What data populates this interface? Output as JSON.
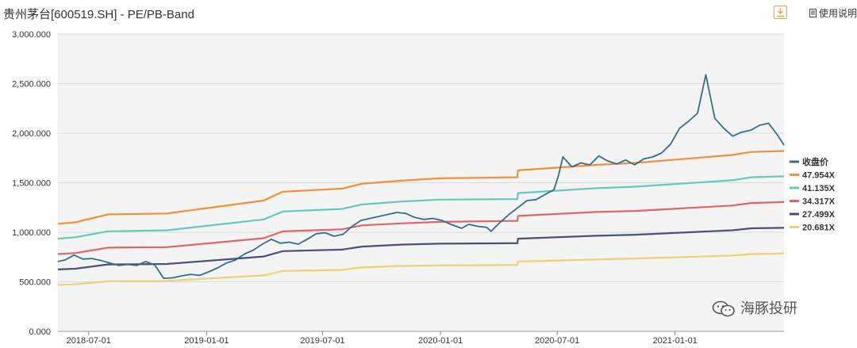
{
  "header": {
    "title": "贵州茅台[600519.SH] - PE/PB-Band",
    "help_label": "使用说明"
  },
  "watermark": {
    "text": "海豚投研"
  },
  "colors": {
    "close": "#2f6f91",
    "b1": "#f0913a",
    "b2": "#64c8c0",
    "b3": "#e06666",
    "b4": "#4b4f80",
    "b5": "#f1cf76",
    "grid": "#dadada",
    "plot_bg": "#f4f4f4"
  },
  "chart_data": {
    "type": "line",
    "x_ticks": [
      "2018-07-01",
      "2019-01-01",
      "2019-07-01",
      "2020-01-01",
      "2020-07-01",
      "2021-01-01"
    ],
    "y_ticks": [
      "0.000",
      "500.000",
      "1,000.000",
      "1,500.000",
      "2,000.000",
      "2,500.000",
      "3,000.000"
    ],
    "ylim": [
      0,
      3000
    ],
    "xlim": [
      "2018-05-14",
      "2021-06-20"
    ],
    "legend_position": "right",
    "series": [
      {
        "name": "收盘价",
        "key": "close",
        "points": [
          [
            "2018-05-14",
            705
          ],
          [
            "2018-05-25",
            720
          ],
          [
            "2018-06-08",
            770
          ],
          [
            "2018-06-22",
            730
          ],
          [
            "2018-07-06",
            735
          ],
          [
            "2018-07-20",
            715
          ],
          [
            "2018-08-03",
            690
          ],
          [
            "2018-08-17",
            665
          ],
          [
            "2018-08-31",
            675
          ],
          [
            "2018-09-14",
            665
          ],
          [
            "2018-09-28",
            705
          ],
          [
            "2018-10-12",
            670
          ],
          [
            "2018-10-26",
            535
          ],
          [
            "2018-11-09",
            540
          ],
          [
            "2018-11-23",
            560
          ],
          [
            "2018-12-07",
            575
          ],
          [
            "2018-12-21",
            565
          ],
          [
            "2019-01-04",
            600
          ],
          [
            "2019-01-18",
            640
          ],
          [
            "2019-02-01",
            690
          ],
          [
            "2019-02-15",
            720
          ],
          [
            "2019-03-01",
            780
          ],
          [
            "2019-03-15",
            820
          ],
          [
            "2019-03-29",
            880
          ],
          [
            "2019-04-12",
            930
          ],
          [
            "2019-04-26",
            890
          ],
          [
            "2019-05-10",
            900
          ],
          [
            "2019-05-24",
            880
          ],
          [
            "2019-06-07",
            930
          ],
          [
            "2019-06-21",
            985
          ],
          [
            "2019-07-05",
            995
          ],
          [
            "2019-07-19",
            960
          ],
          [
            "2019-08-02",
            980
          ],
          [
            "2019-08-16",
            1060
          ],
          [
            "2019-08-30",
            1120
          ],
          [
            "2019-09-13",
            1140
          ],
          [
            "2019-09-27",
            1160
          ],
          [
            "2019-10-11",
            1180
          ],
          [
            "2019-10-25",
            1200
          ],
          [
            "2019-11-08",
            1190
          ],
          [
            "2019-11-22",
            1150
          ],
          [
            "2019-12-06",
            1130
          ],
          [
            "2019-12-20",
            1140
          ],
          [
            "2020-01-03",
            1120
          ],
          [
            "2020-01-17",
            1080
          ],
          [
            "2020-02-03",
            1040
          ],
          [
            "2020-02-14",
            1080
          ],
          [
            "2020-02-28",
            1060
          ],
          [
            "2020-03-13",
            1050
          ],
          [
            "2020-03-20",
            1010
          ],
          [
            "2020-04-03",
            1100
          ],
          [
            "2020-04-17",
            1180
          ],
          [
            "2020-05-01",
            1250
          ],
          [
            "2020-05-15",
            1320
          ],
          [
            "2020-05-29",
            1330
          ],
          [
            "2020-06-12",
            1380
          ],
          [
            "2020-06-26",
            1430
          ],
          [
            "2020-07-03",
            1570
          ],
          [
            "2020-07-10",
            1760
          ],
          [
            "2020-07-24",
            1660
          ],
          [
            "2020-08-07",
            1700
          ],
          [
            "2020-08-21",
            1680
          ],
          [
            "2020-09-04",
            1770
          ],
          [
            "2020-09-18",
            1720
          ],
          [
            "2020-10-02",
            1690
          ],
          [
            "2020-10-16",
            1730
          ],
          [
            "2020-10-30",
            1680
          ],
          [
            "2020-11-13",
            1740
          ],
          [
            "2020-11-27",
            1760
          ],
          [
            "2020-12-11",
            1800
          ],
          [
            "2020-12-25",
            1890
          ],
          [
            "2021-01-08",
            2050
          ],
          [
            "2021-01-22",
            2120
          ],
          [
            "2021-02-05",
            2200
          ],
          [
            "2021-02-18",
            2590
          ],
          [
            "2021-03-04",
            2150
          ],
          [
            "2021-03-18",
            2050
          ],
          [
            "2021-04-01",
            1970
          ],
          [
            "2021-04-15",
            2010
          ],
          [
            "2021-04-29",
            2030
          ],
          [
            "2021-05-13",
            2080
          ],
          [
            "2021-05-27",
            2100
          ],
          [
            "2021-06-10",
            1980
          ],
          [
            "2021-06-20",
            1880
          ]
        ]
      },
      {
        "name": "47.954X",
        "key": "b1",
        "points": [
          [
            "2018-05-14",
            1085
          ],
          [
            "2018-06-10",
            1100
          ],
          [
            "2018-07-31",
            1180
          ],
          [
            "2018-10-31",
            1190
          ],
          [
            "2019-03-31",
            1320
          ],
          [
            "2019-04-30",
            1410
          ],
          [
            "2019-07-31",
            1440
          ],
          [
            "2019-08-31",
            1490
          ],
          [
            "2019-10-31",
            1520
          ],
          [
            "2019-12-31",
            1545
          ],
          [
            "2020-04-30",
            1555
          ],
          [
            "2020-05-01",
            1625
          ],
          [
            "2020-08-31",
            1680
          ],
          [
            "2020-10-31",
            1700
          ],
          [
            "2021-03-31",
            1780
          ],
          [
            "2021-04-30",
            1810
          ],
          [
            "2021-06-20",
            1820
          ]
        ]
      },
      {
        "name": "41.135X",
        "key": "b2",
        "points": [
          [
            "2018-05-14",
            935
          ],
          [
            "2018-06-10",
            950
          ],
          [
            "2018-07-31",
            1010
          ],
          [
            "2018-10-31",
            1020
          ],
          [
            "2019-03-31",
            1130
          ],
          [
            "2019-04-30",
            1210
          ],
          [
            "2019-07-31",
            1235
          ],
          [
            "2019-08-31",
            1280
          ],
          [
            "2019-10-31",
            1310
          ],
          [
            "2019-12-31",
            1330
          ],
          [
            "2020-04-30",
            1335
          ],
          [
            "2020-05-01",
            1395
          ],
          [
            "2020-08-31",
            1445
          ],
          [
            "2020-10-31",
            1460
          ],
          [
            "2021-03-31",
            1525
          ],
          [
            "2021-04-30",
            1555
          ],
          [
            "2021-06-20",
            1565
          ]
        ]
      },
      {
        "name": "34.317X",
        "key": "b3",
        "points": [
          [
            "2018-05-14",
            780
          ],
          [
            "2018-06-10",
            790
          ],
          [
            "2018-07-31",
            845
          ],
          [
            "2018-10-31",
            850
          ],
          [
            "2019-03-31",
            940
          ],
          [
            "2019-04-30",
            1010
          ],
          [
            "2019-07-31",
            1030
          ],
          [
            "2019-08-31",
            1070
          ],
          [
            "2019-10-31",
            1090
          ],
          [
            "2019-12-31",
            1105
          ],
          [
            "2020-04-30",
            1115
          ],
          [
            "2020-05-01",
            1165
          ],
          [
            "2020-08-31",
            1205
          ],
          [
            "2020-10-31",
            1215
          ],
          [
            "2021-03-31",
            1270
          ],
          [
            "2021-04-30",
            1295
          ],
          [
            "2021-06-20",
            1305
          ]
        ]
      },
      {
        "name": "27.499X",
        "key": "b4",
        "points": [
          [
            "2018-05-14",
            625
          ],
          [
            "2018-06-10",
            632
          ],
          [
            "2018-07-31",
            675
          ],
          [
            "2018-10-31",
            680
          ],
          [
            "2019-03-31",
            755
          ],
          [
            "2019-04-30",
            810
          ],
          [
            "2019-07-31",
            825
          ],
          [
            "2019-08-31",
            855
          ],
          [
            "2019-10-31",
            875
          ],
          [
            "2019-12-31",
            885
          ],
          [
            "2020-04-30",
            890
          ],
          [
            "2020-05-01",
            935
          ],
          [
            "2020-08-31",
            965
          ],
          [
            "2020-10-31",
            975
          ],
          [
            "2021-03-31",
            1020
          ],
          [
            "2021-04-30",
            1040
          ],
          [
            "2021-06-20",
            1045
          ]
        ]
      },
      {
        "name": "20.681X",
        "key": "b5",
        "points": [
          [
            "2018-05-14",
            470
          ],
          [
            "2018-06-10",
            475
          ],
          [
            "2018-07-31",
            505
          ],
          [
            "2018-10-31",
            510
          ],
          [
            "2019-03-31",
            565
          ],
          [
            "2019-04-30",
            610
          ],
          [
            "2019-07-31",
            620
          ],
          [
            "2019-08-31",
            645
          ],
          [
            "2019-10-31",
            660
          ],
          [
            "2019-12-31",
            665
          ],
          [
            "2020-04-30",
            670
          ],
          [
            "2020-05-01",
            705
          ],
          [
            "2020-08-31",
            725
          ],
          [
            "2020-10-31",
            735
          ],
          [
            "2021-03-31",
            765
          ],
          [
            "2021-04-30",
            780
          ],
          [
            "2021-06-20",
            785
          ]
        ]
      }
    ]
  }
}
